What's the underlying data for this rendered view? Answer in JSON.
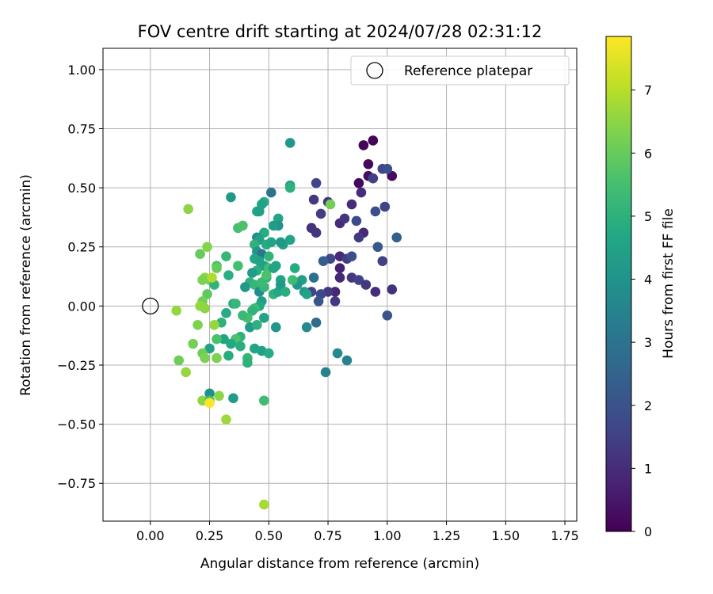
{
  "chart_data": {
    "type": "scatter",
    "title": "FOV centre drift starting at 2024/07/28 02:31:12",
    "xlabel": "Angular distance from reference (arcmin)",
    "ylabel": "Rotation from reference (arcmin)",
    "xlim": [
      -0.2,
      1.8
    ],
    "ylim": [
      -0.91,
      1.09
    ],
    "xticks": [
      "0.00",
      "0.25",
      "0.50",
      "0.75",
      "1.00",
      "1.25",
      "1.50",
      "1.75"
    ],
    "yticks": [
      "−0.75",
      "−0.50",
      "−0.25",
      "0.00",
      "0.25",
      "0.50",
      "0.75",
      "1.00"
    ],
    "grid": true,
    "legend": {
      "placement": "top-right",
      "entries": [
        "Reference platepar"
      ]
    },
    "reference_point": {
      "x": 0.0,
      "y": 0.0
    },
    "colorbar": {
      "label": "Hours from first FF file",
      "range": [
        0,
        7.85
      ],
      "ticks": [
        "0",
        "1",
        "2",
        "3",
        "4",
        "5",
        "6",
        "7"
      ],
      "colormap": "viridis"
    },
    "points": [
      [
        0.9,
        0.68,
        0.1
      ],
      [
        0.94,
        0.7,
        0.1
      ],
      [
        0.92,
        0.6,
        0.2
      ],
      [
        0.92,
        0.55,
        0.3
      ],
      [
        0.88,
        0.52,
        0.2
      ],
      [
        1.02,
        0.55,
        0.3
      ],
      [
        0.94,
        0.54,
        1.5
      ],
      [
        0.98,
        0.58,
        1.7
      ],
      [
        1.0,
        0.58,
        1.9
      ],
      [
        0.89,
        0.48,
        1.0
      ],
      [
        0.85,
        0.43,
        1.0
      ],
      [
        0.75,
        0.44,
        1.2
      ],
      [
        0.7,
        0.52,
        1.6
      ],
      [
        0.69,
        0.45,
        1.3
      ],
      [
        0.72,
        0.39,
        1.4
      ],
      [
        0.68,
        0.33,
        1.1
      ],
      [
        0.7,
        0.31,
        1.2
      ],
      [
        0.8,
        0.35,
        1.0
      ],
      [
        0.82,
        0.37,
        1.2
      ],
      [
        0.87,
        0.36,
        1.8
      ],
      [
        0.9,
        0.31,
        0.9
      ],
      [
        0.88,
        0.29,
        1.3
      ],
      [
        0.95,
        0.4,
        1.9
      ],
      [
        0.99,
        0.42,
        1.6
      ],
      [
        1.04,
        0.29,
        2.4
      ],
      [
        0.96,
        0.25,
        2.2
      ],
      [
        0.98,
        0.19,
        1.5
      ],
      [
        0.8,
        0.21,
        0.9
      ],
      [
        0.83,
        0.2,
        1.4
      ],
      [
        0.85,
        0.21,
        1.9
      ],
      [
        0.76,
        0.2,
        1.7
      ],
      [
        0.73,
        0.19,
        2.3
      ],
      [
        0.8,
        0.16,
        0.7
      ],
      [
        0.8,
        0.12,
        0.9
      ],
      [
        0.85,
        0.12,
        1.3
      ],
      [
        0.88,
        0.11,
        1.5
      ],
      [
        0.91,
        0.09,
        1.3
      ],
      [
        0.95,
        0.06,
        1.0
      ],
      [
        1.02,
        0.07,
        1.1
      ],
      [
        0.78,
        0.06,
        0.8
      ],
      [
        0.75,
        0.06,
        1.3
      ],
      [
        0.72,
        0.05,
        1.7
      ],
      [
        0.68,
        0.06,
        1.6
      ],
      [
        0.78,
        0.02,
        1.3
      ],
      [
        0.71,
        0.02,
        2.1
      ],
      [
        0.69,
        0.12,
        2.9
      ],
      [
        0.7,
        -0.07,
        2.7
      ],
      [
        0.66,
        -0.09,
        3.7
      ],
      [
        0.79,
        -0.2,
        3.7
      ],
      [
        0.74,
        -0.28,
        3.5
      ],
      [
        0.83,
        -0.23,
        3.5
      ],
      [
        1.0,
        -0.04,
        2.0
      ],
      [
        0.59,
        0.69,
        4.2
      ],
      [
        0.59,
        0.51,
        4.6
      ],
      [
        0.59,
        0.5,
        5.0
      ],
      [
        0.51,
        0.48,
        3.0
      ],
      [
        0.48,
        0.44,
        4.8
      ],
      [
        0.47,
        0.43,
        4.5
      ],
      [
        0.45,
        0.4,
        4.7
      ],
      [
        0.46,
        0.4,
        4.4
      ],
      [
        0.34,
        0.46,
        4.2
      ],
      [
        0.54,
        0.37,
        4.6
      ],
      [
        0.54,
        0.34,
        4.0
      ],
      [
        0.52,
        0.34,
        4.3
      ],
      [
        0.56,
        0.26,
        4.4
      ],
      [
        0.59,
        0.28,
        4.6
      ],
      [
        0.55,
        0.27,
        4.2
      ],
      [
        0.48,
        0.31,
        4.8
      ],
      [
        0.45,
        0.29,
        3.8
      ],
      [
        0.46,
        0.28,
        4.4
      ],
      [
        0.49,
        0.26,
        4.8
      ],
      [
        0.51,
        0.27,
        4.6
      ],
      [
        0.44,
        0.26,
        5.0
      ],
      [
        0.37,
        0.33,
        5.5
      ],
      [
        0.39,
        0.34,
        5.6
      ],
      [
        0.45,
        0.23,
        4.1
      ],
      [
        0.47,
        0.22,
        3.1
      ],
      [
        0.5,
        0.21,
        5.1
      ],
      [
        0.44,
        0.2,
        4.7
      ],
      [
        0.46,
        0.19,
        4.5
      ],
      [
        0.48,
        0.17,
        4.4
      ],
      [
        0.5,
        0.16,
        5.4
      ],
      [
        0.52,
        0.16,
        4.5
      ],
      [
        0.53,
        0.17,
        4.6
      ],
      [
        0.49,
        0.12,
        5.0
      ],
      [
        0.55,
        0.11,
        4.6
      ],
      [
        0.61,
        0.16,
        4.8
      ],
      [
        0.62,
        0.1,
        5.0
      ],
      [
        0.64,
        0.11,
        4.4
      ],
      [
        0.65,
        0.06,
        4.2
      ],
      [
        0.66,
        0.05,
        4.5
      ],
      [
        0.62,
        0.09,
        4.1
      ],
      [
        0.45,
        0.15,
        4.9
      ],
      [
        0.43,
        0.14,
        4.3
      ],
      [
        0.42,
        0.1,
        5.0
      ],
      [
        0.44,
        0.09,
        5.2
      ],
      [
        0.4,
        0.08,
        4.2
      ],
      [
        0.46,
        0.06,
        3.8
      ],
      [
        0.48,
        0.08,
        5.2
      ],
      [
        0.52,
        0.05,
        5.0
      ],
      [
        0.54,
        0.06,
        4.7
      ],
      [
        0.55,
        0.09,
        4.2
      ],
      [
        0.57,
        0.06,
        4.9
      ],
      [
        0.47,
        0.02,
        4.4
      ],
      [
        0.46,
        0.0,
        4.7
      ],
      [
        0.44,
        -0.01,
        5.4
      ],
      [
        0.43,
        -0.02,
        5.1
      ],
      [
        0.41,
        -0.05,
        5.5
      ],
      [
        0.39,
        -0.04,
        5.3
      ],
      [
        0.42,
        -0.09,
        4.3
      ],
      [
        0.45,
        -0.08,
        5.0
      ],
      [
        0.48,
        -0.05,
        4.5
      ],
      [
        0.53,
        -0.09,
        4.1
      ],
      [
        0.47,
        -0.19,
        4.4
      ],
      [
        0.44,
        -0.18,
        4.6
      ],
      [
        0.5,
        -0.2,
        4.8
      ],
      [
        0.41,
        -0.22,
        5.2
      ],
      [
        0.41,
        -0.24,
        5.0
      ],
      [
        0.38,
        -0.13,
        5.0
      ],
      [
        0.36,
        -0.14,
        5.6
      ],
      [
        0.38,
        -0.17,
        4.9
      ],
      [
        0.34,
        -0.16,
        4.7
      ],
      [
        0.33,
        -0.21,
        4.8
      ],
      [
        0.31,
        -0.14,
        4.6
      ],
      [
        0.28,
        -0.14,
        5.6
      ],
      [
        0.25,
        -0.18,
        4.5
      ],
      [
        0.3,
        -0.07,
        5.0
      ],
      [
        0.32,
        -0.03,
        4.8
      ],
      [
        0.35,
        0.01,
        4.8
      ],
      [
        0.36,
        0.01,
        5.2
      ],
      [
        0.37,
        0.17,
        5.5
      ],
      [
        0.32,
        0.21,
        5.2
      ],
      [
        0.33,
        0.13,
        4.9
      ],
      [
        0.28,
        0.17,
        5.6
      ],
      [
        0.28,
        0.16,
        6.0
      ],
      [
        0.25,
        0.11,
        6.2
      ],
      [
        0.23,
        0.12,
        6.5
      ],
      [
        0.22,
        0.11,
        6.3
      ],
      [
        0.27,
        0.09,
        5.1
      ],
      [
        0.24,
        0.05,
        5.9
      ],
      [
        0.21,
        0.22,
        6.0
      ],
      [
        0.24,
        0.25,
        6.4
      ],
      [
        0.16,
        0.41,
        6.5
      ],
      [
        0.22,
        0.02,
        6.2
      ],
      [
        0.21,
        0.0,
        6.6
      ],
      [
        0.23,
        -0.01,
        6.5
      ],
      [
        0.2,
        -0.08,
        6.3
      ],
      [
        0.27,
        -0.08,
        6.6
      ],
      [
        0.18,
        -0.16,
        6.2
      ],
      [
        0.22,
        -0.2,
        6.1
      ],
      [
        0.23,
        -0.22,
        6.3
      ],
      [
        0.28,
        -0.22,
        6.3
      ],
      [
        0.12,
        -0.23,
        6.1
      ],
      [
        0.15,
        -0.28,
        6.6
      ],
      [
        0.11,
        -0.02,
        6.6
      ],
      [
        0.22,
        -0.4,
        6.5
      ],
      [
        0.25,
        -0.37,
        3.9
      ],
      [
        0.25,
        -0.4,
        5.4
      ],
      [
        0.29,
        -0.38,
        6.5
      ],
      [
        0.35,
        -0.39,
        4.3
      ],
      [
        0.48,
        -0.4,
        5.4
      ],
      [
        0.25,
        -0.41,
        7.8
      ],
      [
        0.32,
        -0.48,
        6.7
      ],
      [
        0.48,
        -0.84,
        6.8
      ],
      [
        0.76,
        0.43,
        6.2
      ],
      [
        0.26,
        0.12,
        6.9
      ],
      [
        0.47,
        0.1,
        5.3
      ],
      [
        0.49,
        0.13,
        5.6
      ],
      [
        0.6,
        0.11,
        5.4
      ]
    ]
  }
}
